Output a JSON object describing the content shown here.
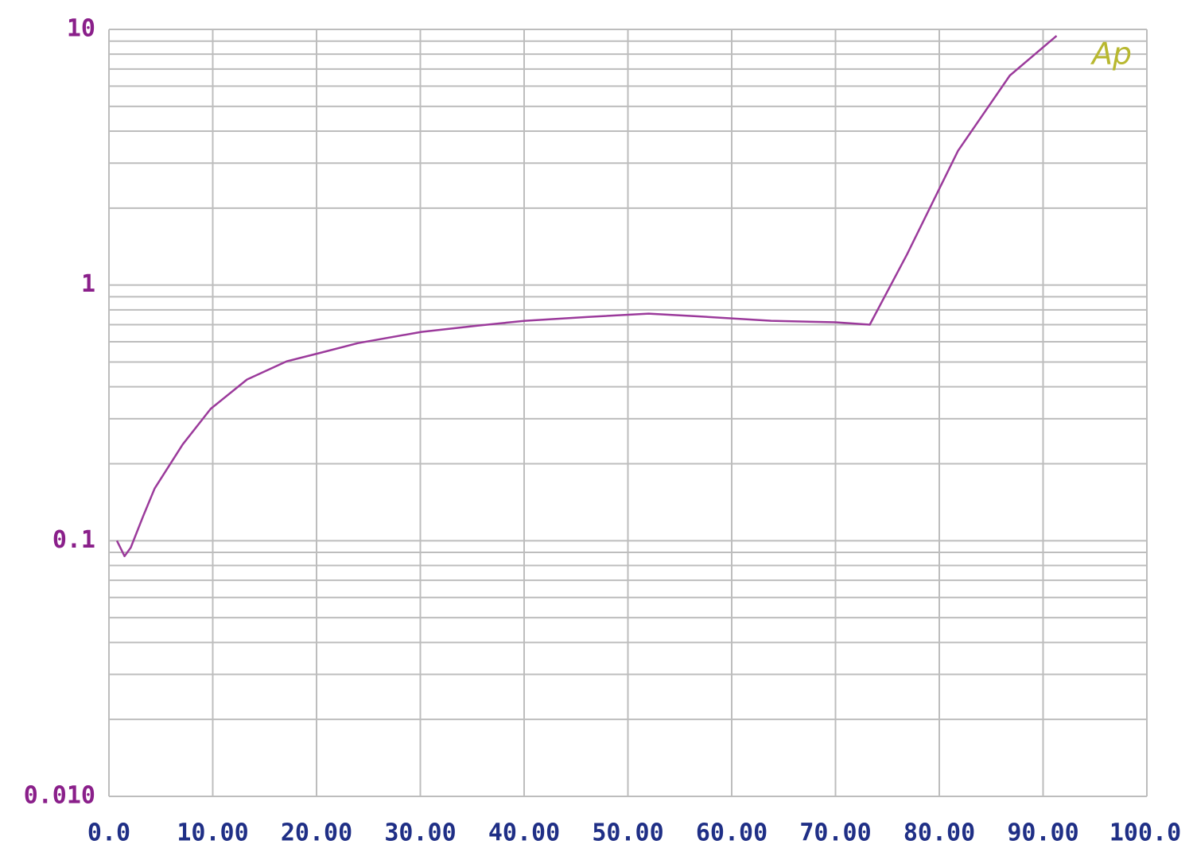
{
  "chart_data": {
    "type": "line",
    "annotation": "Ap",
    "annotation_color": "#b8b830",
    "x": [
      0.77,
      1.5,
      2.1,
      3.3,
      4.4,
      7.1,
      9.8,
      13.3,
      17.1,
      20.2,
      24,
      30.1,
      35.5,
      40.1,
      46.2,
      52,
      56.2,
      63.8,
      70,
      73.3,
      76.9,
      81.8,
      86.8,
      91.3
    ],
    "series": [
      {
        "color": "#9b3a9b",
        "values": [
          0.1,
          0.087,
          0.094,
          0.125,
          0.16,
          0.238,
          0.328,
          0.427,
          0.503,
          0.541,
          0.593,
          0.656,
          0.694,
          0.725,
          0.751,
          0.773,
          0.757,
          0.725,
          0.715,
          0.7,
          1.32,
          3.35,
          6.6,
          9.44
        ]
      }
    ],
    "xlim": [
      0,
      100
    ],
    "xticks": [
      {
        "value": 0,
        "label": "0.0"
      },
      {
        "value": 10,
        "label": "10.00"
      },
      {
        "value": 20,
        "label": "20.00"
      },
      {
        "value": 30,
        "label": "30.00"
      },
      {
        "value": 40,
        "label": "40.00"
      },
      {
        "value": 50,
        "label": "50.00"
      },
      {
        "value": 60,
        "label": "60.00"
      },
      {
        "value": 70,
        "label": "70.00"
      },
      {
        "value": 80,
        "label": "80.00"
      },
      {
        "value": 90,
        "label": "90.00"
      },
      {
        "value": 100,
        "label": "100.0"
      }
    ],
    "ylim": [
      0.01,
      10
    ],
    "yticks": [
      {
        "value": 0.01,
        "label": "0.010"
      },
      0.1,
      1,
      10
    ],
    "yminor_ticks": [
      0.02,
      0.03,
      0.04,
      0.05,
      0.06,
      0.07,
      0.08,
      0.09,
      0.2,
      0.3,
      0.4,
      0.5,
      0.6,
      0.7,
      0.8,
      0.9,
      2,
      3,
      4,
      5,
      6,
      7,
      8,
      9
    ],
    "yscale": "log",
    "grid": true
  }
}
